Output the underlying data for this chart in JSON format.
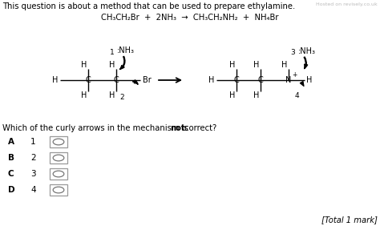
{
  "title_text": "This question is about a method that can be used to prepare ethylamine.",
  "watermark": "Hosted on revisely.co.uk",
  "equation_parts": [
    "CH₃CH₂Br  +  2NH₃  →  CH₃CH₂NH₂  +  NH₄Br"
  ],
  "question_pre": "Which of the curly arrows in the mechanism is ",
  "question_bold": "not",
  "question_end": " correct?",
  "options": [
    "A",
    "B",
    "C",
    "D"
  ],
  "option_nums": [
    "1",
    "2",
    "3",
    "4"
  ],
  "total_mark": "[Total 1 mark]",
  "bg_color": "#ffffff",
  "text_color": "#000000",
  "box_color": "#999999"
}
